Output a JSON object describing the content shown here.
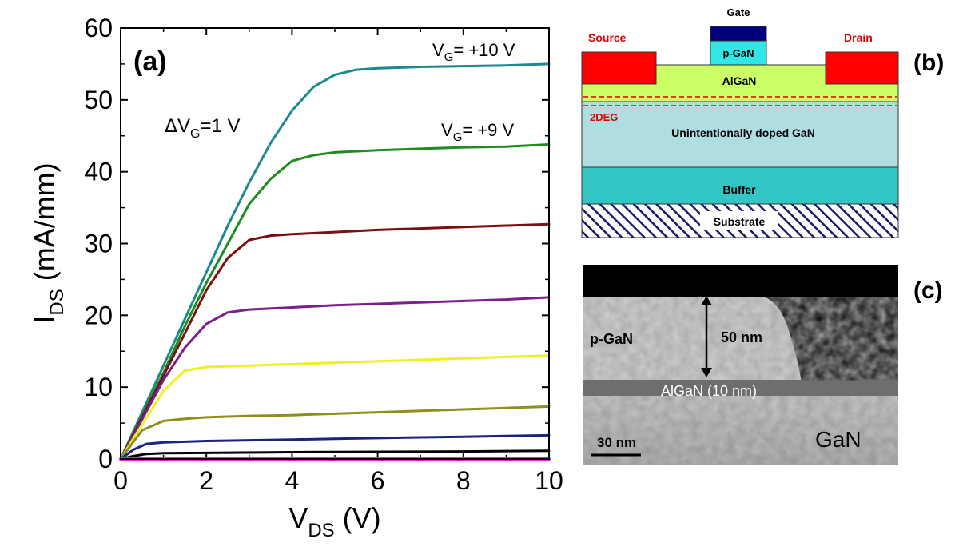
{
  "chart_data": {
    "type": "line",
    "panel_label": "(a)",
    "xlabel_main": "V",
    "xlabel_sub": "DS",
    "xlabel_unit": " (V)",
    "ylabel_main": "I",
    "ylabel_sub": "DS",
    "ylabel_unit": " (mA/mm)",
    "xlim": [
      0,
      10
    ],
    "ylim": [
      0,
      60
    ],
    "xticks": [
      "0",
      "2",
      "4",
      "6",
      "8",
      "10"
    ],
    "yticks": [
      "0",
      "10",
      "20",
      "30",
      "40",
      "50",
      "60"
    ],
    "grid": false,
    "annotations": {
      "top_label": {
        "pre": "V",
        "sub": "G",
        "post": "= +10 V"
      },
      "second_label": {
        "pre": "V",
        "sub": "G",
        "post": "= +9 V"
      },
      "step_label": {
        "pre": "ΔV",
        "sub": "G",
        "post": "=1 V"
      }
    },
    "series": [
      {
        "color": "#1a8a8f",
        "x": [
          0,
          0.5,
          1,
          1.5,
          2,
          2.5,
          3,
          3.5,
          4,
          4.5,
          5,
          5.5,
          6,
          7,
          8,
          9,
          10
        ],
        "y": [
          0,
          6.5,
          13,
          19.5,
          26,
          32.5,
          38.5,
          44,
          48.5,
          51.8,
          53.5,
          54.2,
          54.4,
          54.6,
          54.7,
          54.8,
          55
        ]
      },
      {
        "color": "#1f8c1f",
        "x": [
          0,
          0.5,
          1,
          1.5,
          2,
          2.5,
          3,
          3.5,
          4,
          4.5,
          5,
          6,
          7,
          8,
          9,
          10
        ],
        "y": [
          0,
          6,
          12,
          18.5,
          24.5,
          30,
          35.5,
          39,
          41.5,
          42.3,
          42.7,
          43,
          43.2,
          43.4,
          43.5,
          43.8
        ]
      },
      {
        "color": "#7a1010",
        "x": [
          0,
          0.5,
          1,
          1.5,
          2,
          2.5,
          3,
          3.5,
          4,
          5,
          6,
          7,
          8,
          9,
          10
        ],
        "y": [
          0,
          5.8,
          11.6,
          17.5,
          23.5,
          28,
          30.5,
          31.1,
          31.3,
          31.6,
          31.9,
          32.1,
          32.3,
          32.5,
          32.7
        ]
      },
      {
        "color": "#7b1f8e",
        "x": [
          0,
          0.5,
          1,
          1.5,
          2,
          2.5,
          3,
          4,
          5,
          6,
          7,
          8,
          9,
          10
        ],
        "y": [
          0,
          5.5,
          11,
          15.5,
          18.8,
          20.4,
          20.8,
          21.1,
          21.4,
          21.6,
          21.8,
          22,
          22.2,
          22.5
        ]
      },
      {
        "color": "#f0f020",
        "x": [
          0,
          0.5,
          1,
          1.5,
          2,
          3,
          4,
          5,
          6,
          7,
          8,
          9,
          10
        ],
        "y": [
          0,
          4.8,
          9.5,
          12.3,
          12.8,
          13,
          13.2,
          13.4,
          13.6,
          13.8,
          14,
          14.2,
          14.4
        ]
      },
      {
        "color": "#8f8f1c",
        "x": [
          0,
          0.5,
          1,
          1.5,
          2,
          3,
          4,
          5,
          6,
          7,
          8,
          9,
          10
        ],
        "y": [
          0,
          4,
          5.3,
          5.6,
          5.8,
          6,
          6.1,
          6.3,
          6.5,
          6.7,
          6.9,
          7.1,
          7.3
        ]
      },
      {
        "color": "#1a237e",
        "x": [
          0,
          0.3,
          0.6,
          1,
          2,
          3,
          4,
          5,
          6,
          7,
          8,
          9,
          10
        ],
        "y": [
          0,
          1.3,
          2.1,
          2.3,
          2.5,
          2.6,
          2.7,
          2.8,
          2.9,
          3,
          3.1,
          3.2,
          3.3
        ]
      },
      {
        "color": "#000000",
        "x": [
          0,
          0.3,
          0.6,
          1,
          2,
          4,
          6,
          8,
          10
        ],
        "y": [
          0,
          0.4,
          0.7,
          0.8,
          0.85,
          0.95,
          1,
          1.05,
          1.15
        ]
      },
      {
        "color": "#ff1ad9",
        "x": [
          0,
          10
        ],
        "y": [
          0,
          0
        ]
      }
    ]
  },
  "panel_b": {
    "label": "(b)",
    "gate": "Gate",
    "source": "Source",
    "drain": "Drain",
    "pgan": "p-GaN",
    "algan": "AlGaN",
    "twodeg": "2DEG",
    "uid_gan": "Unintentionally doped  GaN",
    "buffer": "Buffer",
    "substrate": "Substrate",
    "colors": {
      "contact": "#ff0000",
      "gate_metal": "#00007a",
      "pgan": "#33e6e6",
      "algan": "#ccff66",
      "uid_gan": "#b0dde0",
      "buffer": "#33c4c4",
      "twodeg_line": "#e00000",
      "substrate_hatch": "#1a1a66"
    }
  },
  "panel_c": {
    "label": "(c)",
    "pgan": "p-GaN",
    "thickness": "50 nm",
    "algan": "AlGaN (10 nm)",
    "gan": "GaN",
    "scalebar": "30 nm"
  }
}
